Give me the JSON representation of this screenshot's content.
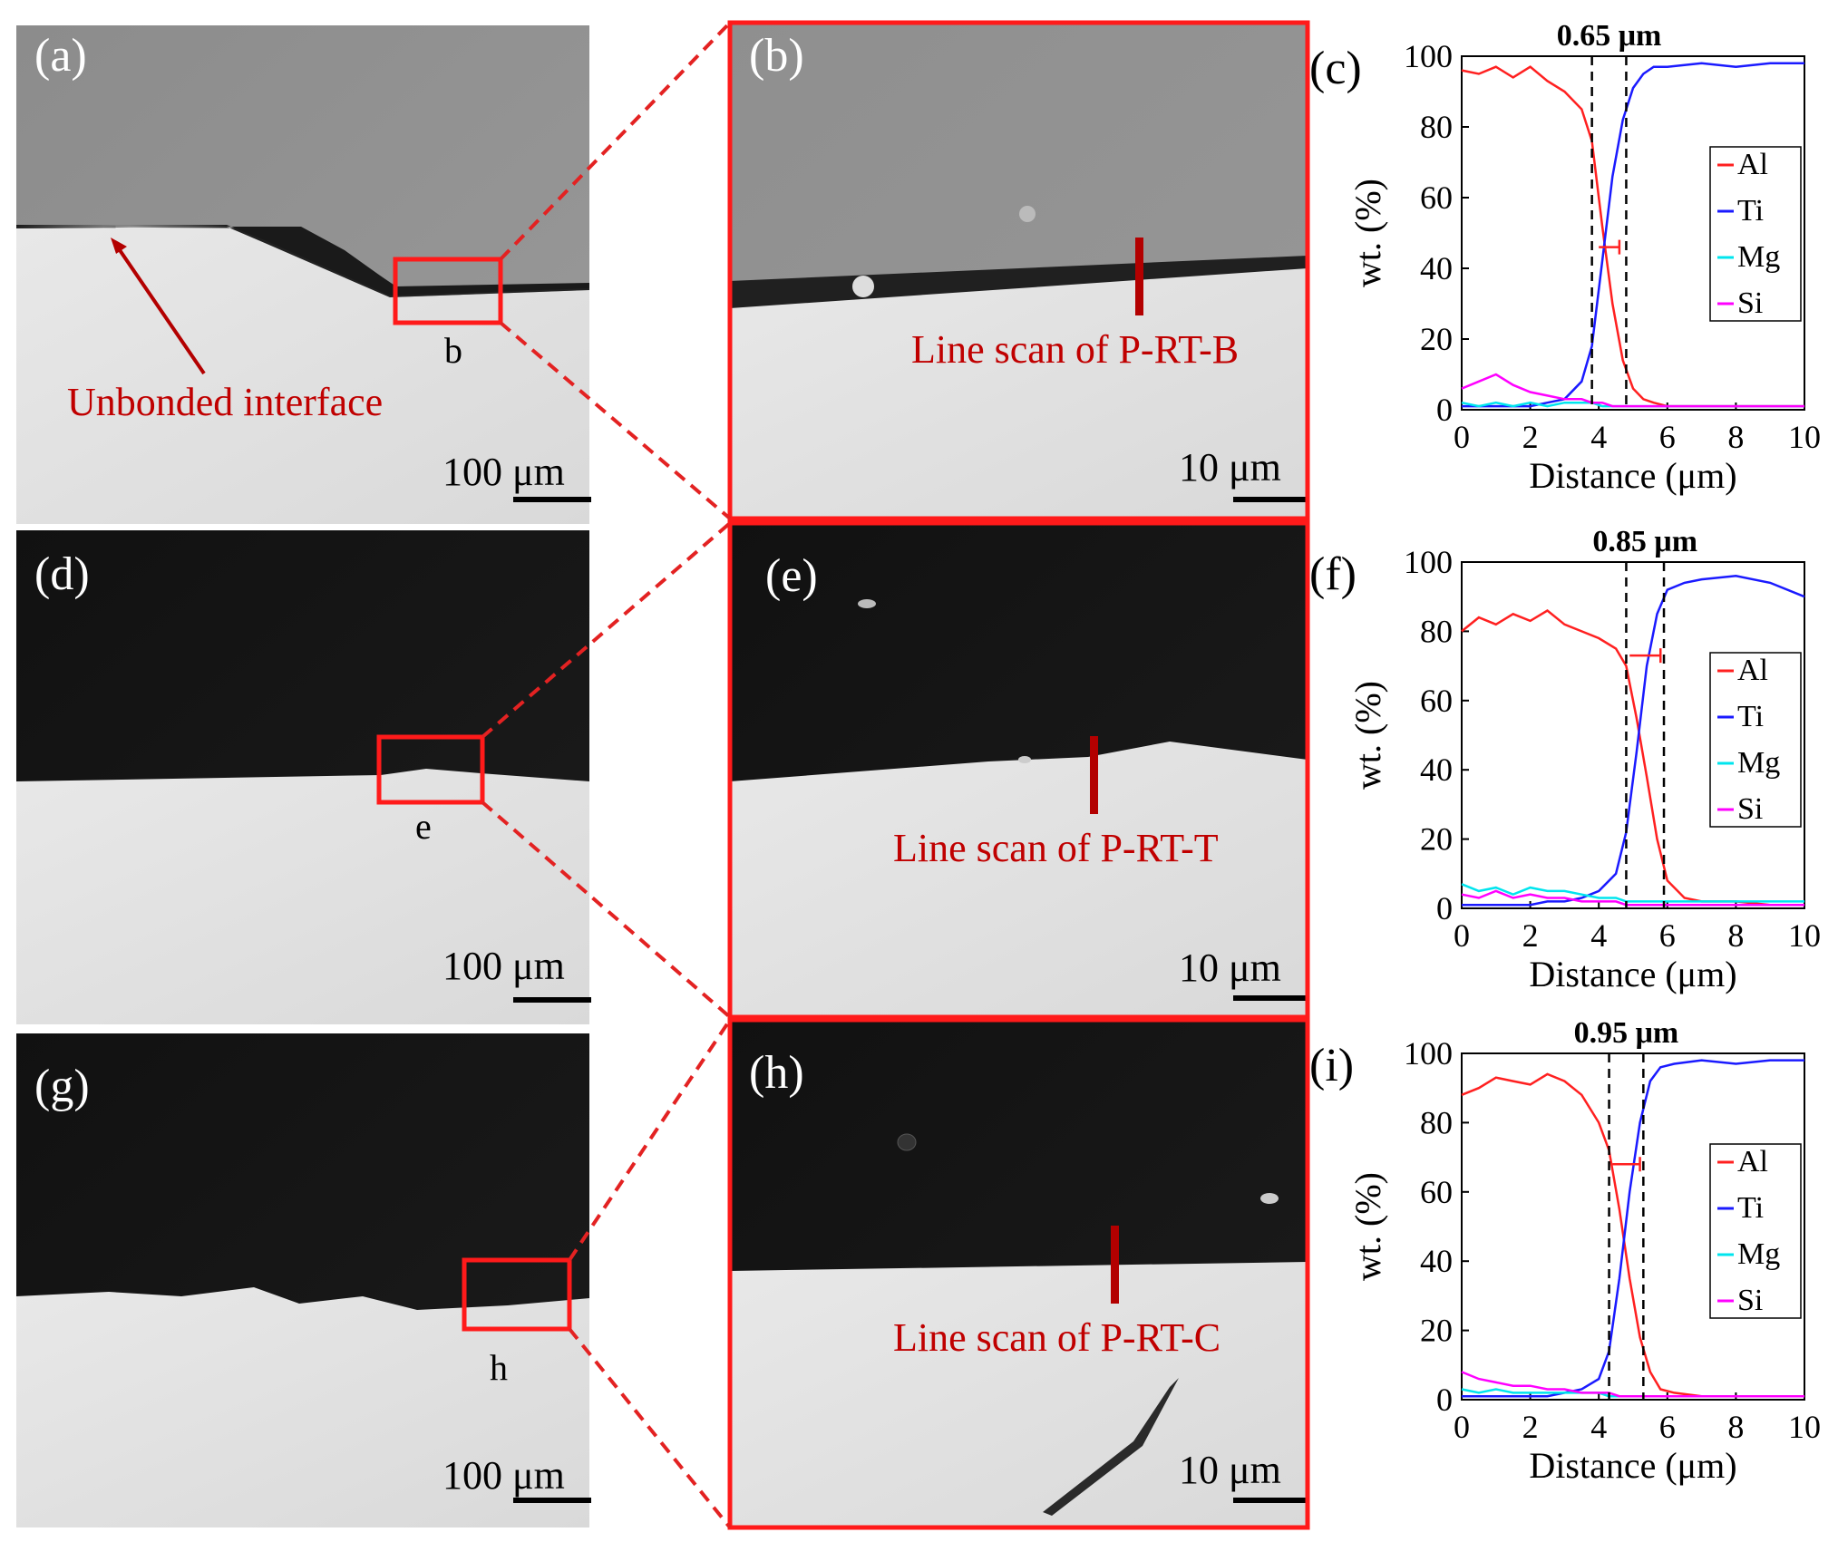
{
  "micrographs": {
    "a": {
      "label": "(a)",
      "box_label": "b",
      "annotation": "Unbonded  interface",
      "scale": "100 μm"
    },
    "b": {
      "label": "(b)",
      "annotation": "Line scan of P-RT-B",
      "scale": "10 μm"
    },
    "d": {
      "label": "(d)",
      "box_label": "e",
      "scale": "100 μm"
    },
    "e": {
      "label": "(e)",
      "annotation": "Line scan of P-RT-T",
      "scale": "10 μm"
    },
    "g": {
      "label": "(g)",
      "box_label": "h",
      "scale": "100 μm"
    },
    "h": {
      "label": "(h)",
      "annotation": "Line scan of P-RT-C",
      "scale": "10 μm"
    }
  },
  "colors": {
    "annotation_red": "#c00000",
    "dashed_red": "#e32222",
    "Al": "#ff2020",
    "Ti": "#1a1aff",
    "Mg": "#00e5ee",
    "Si": "#ff00ff"
  },
  "chart_data": [
    {
      "type": "line",
      "label": "(c)",
      "title": "0.65 μm",
      "xlabel": "Distance (μm)",
      "ylabel": "wt. (%)",
      "xlim": [
        0,
        10
      ],
      "ylim": [
        0,
        100
      ],
      "xticks": [
        0,
        2,
        4,
        6,
        8,
        10
      ],
      "yticks": [
        0,
        20,
        40,
        60,
        80,
        100
      ],
      "legend_position": "right",
      "interface_width_um": 0.65,
      "dashed_lines_x": [
        3.8,
        4.8
      ],
      "width_marker": {
        "x1": 4.0,
        "x2": 4.6,
        "y": 46
      },
      "x": [
        0,
        0.5,
        1,
        1.5,
        2,
        2.5,
        3,
        3.5,
        3.8,
        4.1,
        4.4,
        4.7,
        5.0,
        5.3,
        5.6,
        6,
        7,
        8,
        9,
        10
      ],
      "series": [
        {
          "name": "Al",
          "values": [
            96,
            95,
            97,
            94,
            97,
            93,
            90,
            85,
            76,
            52,
            30,
            14,
            6,
            3,
            2,
            1,
            1,
            1,
            1,
            1
          ]
        },
        {
          "name": "Ti",
          "values": [
            1,
            1,
            1,
            1,
            1,
            2,
            3,
            8,
            18,
            42,
            66,
            82,
            91,
            95,
            97,
            97,
            98,
            97,
            98,
            98
          ]
        },
        {
          "name": "Mg",
          "values": [
            2,
            1,
            2,
            1,
            2,
            1,
            2,
            2,
            2,
            1,
            1,
            1,
            1,
            1,
            1,
            1,
            1,
            1,
            1,
            1
          ]
        },
        {
          "name": "Si",
          "values": [
            6,
            8,
            10,
            7,
            5,
            4,
            3,
            3,
            2,
            2,
            1,
            1,
            1,
            1,
            1,
            1,
            1,
            1,
            1,
            1
          ]
        }
      ]
    },
    {
      "type": "line",
      "label": "(f)",
      "title": "0.85 μm",
      "xlabel": "Distance (μm)",
      "ylabel": "wt. (%)",
      "xlim": [
        0,
        10
      ],
      "ylim": [
        0,
        100
      ],
      "xticks": [
        0,
        2,
        4,
        6,
        8,
        10
      ],
      "yticks": [
        0,
        20,
        40,
        60,
        80,
        100
      ],
      "legend_position": "right",
      "interface_width_um": 0.85,
      "dashed_lines_x": [
        4.8,
        5.9
      ],
      "width_marker": {
        "x1": 4.9,
        "x2": 5.8,
        "y": 73
      },
      "x": [
        0,
        0.5,
        1,
        1.5,
        2,
        2.5,
        3,
        3.5,
        4,
        4.5,
        4.8,
        5.1,
        5.4,
        5.7,
        6.0,
        6.5,
        7,
        8,
        9,
        10
      ],
      "series": [
        {
          "name": "Al",
          "values": [
            80,
            84,
            82,
            85,
            83,
            86,
            82,
            80,
            78,
            75,
            70,
            55,
            38,
            20,
            8,
            3,
            2,
            2,
            1,
            1
          ]
        },
        {
          "name": "Ti",
          "values": [
            1,
            1,
            1,
            1,
            1,
            2,
            2,
            3,
            5,
            10,
            22,
            45,
            70,
            85,
            92,
            94,
            95,
            96,
            94,
            90
          ]
        },
        {
          "name": "Mg",
          "values": [
            7,
            5,
            6,
            4,
            6,
            5,
            5,
            4,
            3,
            3,
            2,
            2,
            2,
            2,
            2,
            2,
            2,
            2,
            2,
            2
          ]
        },
        {
          "name": "Si",
          "values": [
            4,
            3,
            5,
            3,
            4,
            3,
            3,
            2,
            2,
            2,
            1,
            1,
            1,
            1,
            1,
            1,
            1,
            1,
            1,
            1
          ]
        }
      ]
    },
    {
      "type": "line",
      "label": "(i)",
      "title": "0.95 μm",
      "xlabel": "Distance (μm)",
      "ylabel": "wt. (%)",
      "xlim": [
        0,
        10
      ],
      "ylim": [
        0,
        100
      ],
      "xticks": [
        0,
        2,
        4,
        6,
        8,
        10
      ],
      "yticks": [
        0,
        20,
        40,
        60,
        80,
        100
      ],
      "legend_position": "right",
      "interface_width_um": 0.95,
      "dashed_lines_x": [
        4.3,
        5.3
      ],
      "width_marker": {
        "x1": 4.4,
        "x2": 5.2,
        "y": 68
      },
      "x": [
        0,
        0.5,
        1,
        1.5,
        2,
        2.5,
        3,
        3.5,
        4,
        4.3,
        4.6,
        4.9,
        5.2,
        5.5,
        5.8,
        6.2,
        7,
        8,
        9,
        10
      ],
      "series": [
        {
          "name": "Al",
          "values": [
            88,
            90,
            93,
            92,
            91,
            94,
            92,
            88,
            80,
            72,
            55,
            35,
            18,
            8,
            3,
            2,
            1,
            1,
            1,
            1
          ]
        },
        {
          "name": "Ti",
          "values": [
            1,
            1,
            1,
            1,
            1,
            1,
            2,
            3,
            6,
            14,
            35,
            60,
            80,
            92,
            96,
            97,
            98,
            97,
            98,
            98
          ]
        },
        {
          "name": "Mg",
          "values": [
            3,
            2,
            3,
            2,
            2,
            2,
            2,
            2,
            2,
            1,
            1,
            1,
            1,
            1,
            1,
            1,
            1,
            1,
            1,
            1
          ]
        },
        {
          "name": "Si",
          "values": [
            8,
            6,
            5,
            4,
            4,
            3,
            3,
            2,
            2,
            2,
            1,
            1,
            1,
            1,
            1,
            1,
            1,
            1,
            1,
            1
          ]
        }
      ]
    }
  ]
}
